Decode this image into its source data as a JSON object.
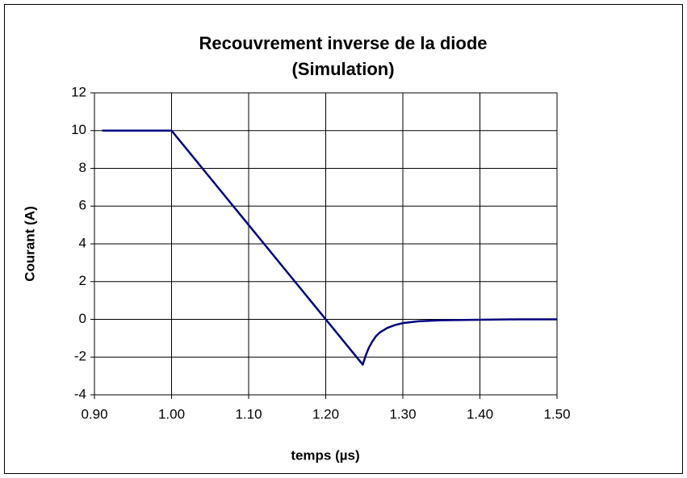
{
  "chart_data": {
    "type": "line",
    "title": [
      "Recouvrement inverse de la diode",
      "(Simulation)"
    ],
    "x_label": "temps (µs)",
    "y_label": "Courant (A)",
    "xlim": [
      0.9,
      1.5
    ],
    "xticks": [
      {
        "value": 0.9,
        "label": "0.90"
      },
      {
        "value": 1.0,
        "label": "1.00"
      },
      {
        "value": 1.1,
        "label": "1.10"
      },
      {
        "value": 1.2,
        "label": "1.20"
      },
      {
        "value": 1.3,
        "label": "1.30"
      },
      {
        "value": 1.4,
        "label": "1.40"
      },
      {
        "value": 1.5,
        "label": "1.50"
      }
    ],
    "ylim": [
      -4,
      12
    ],
    "yticks": [
      -4,
      -2,
      0,
      2,
      4,
      6,
      8,
      10,
      12
    ],
    "grid": true,
    "series": [
      {
        "color": "#000080",
        "x": [
          0.91,
          1.0,
          1.248,
          1.252,
          1.256,
          1.26,
          1.265,
          1.27,
          1.28,
          1.29,
          1.3,
          1.32,
          1.35,
          1.4,
          1.45,
          1.5
        ],
        "values": [
          10,
          10,
          -2.4,
          -1.9,
          -1.5,
          -1.2,
          -0.9,
          -0.7,
          -0.45,
          -0.3,
          -0.2,
          -0.1,
          -0.05,
          -0.02,
          0,
          0
        ]
      }
    ]
  }
}
